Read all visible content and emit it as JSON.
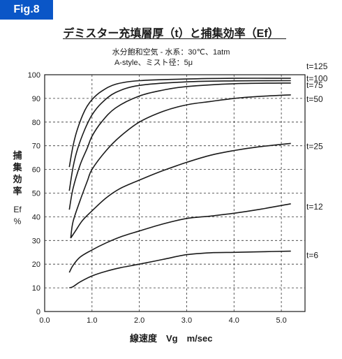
{
  "figure_label": "Fig.8",
  "title": "デミスター充填層厚（t）と捕集効率（Ef）",
  "subtitle_1": "水分飽和空気 - 水系：30℃、1atm",
  "subtitle_2": "A-style、ミスト径：5μ",
  "colors": {
    "badge": "#0a56c7",
    "curve": "#1a1a1a",
    "grid": "#333333"
  },
  "chart_data": {
    "type": "line",
    "title": "デミスター充填層厚（t）と捕集効率（Ef）",
    "xlabel": "線速度　Vg　m/sec",
    "ylabel": "捕集効率",
    "ylabel_unit": "Ef\n%",
    "xlim": [
      0.0,
      5.5
    ],
    "ylim": [
      0,
      100
    ],
    "x_ticks": [
      0.0,
      1.0,
      2.0,
      3.0,
      4.0,
      5.0
    ],
    "x_tick_labels": [
      "0.0",
      "1.0",
      "2.0",
      "3.0",
      "4.0",
      "5.0"
    ],
    "y_ticks": [
      0,
      10,
      20,
      30,
      40,
      50,
      60,
      70,
      80,
      90,
      100
    ],
    "y_tick_labels": [
      "0",
      "10",
      "20",
      "30",
      "40",
      "50",
      "60",
      "70",
      "80",
      "90",
      "100"
    ],
    "grid": "dashed at ticks",
    "series": [
      {
        "name": "t=125",
        "points": [
          [
            0.52,
            61
          ],
          [
            0.6,
            70
          ],
          [
            0.7,
            77.5
          ],
          [
            0.85,
            85
          ],
          [
            1.0,
            89.5
          ],
          [
            1.2,
            93
          ],
          [
            1.5,
            96
          ],
          [
            2.0,
            97.5
          ],
          [
            3.0,
            98.2
          ],
          [
            4.0,
            98.5
          ],
          [
            5.2,
            98.5
          ]
        ]
      },
      {
        "name": "t=100",
        "points": [
          [
            0.52,
            51
          ],
          [
            0.6,
            61
          ],
          [
            0.7,
            69
          ],
          [
            0.85,
            77
          ],
          [
            1.0,
            83
          ],
          [
            1.2,
            88
          ],
          [
            1.5,
            92.5
          ],
          [
            2.0,
            95.5
          ],
          [
            3.0,
            97
          ],
          [
            4.0,
            97.4
          ],
          [
            5.2,
            97.5
          ]
        ]
      },
      {
        "name": "t=75",
        "points": [
          [
            0.52,
            43
          ],
          [
            0.6,
            52
          ],
          [
            0.75,
            62
          ],
          [
            0.9,
            69
          ],
          [
            1.0,
            74
          ],
          [
            1.2,
            80
          ],
          [
            1.5,
            86
          ],
          [
            2.0,
            91
          ],
          [
            2.5,
            93.5
          ],
          [
            3.0,
            95
          ],
          [
            4.0,
            96.2
          ],
          [
            5.2,
            96.5
          ]
        ]
      },
      {
        "name": "t=50",
        "points": [
          [
            0.55,
            31
          ],
          [
            0.6,
            38
          ],
          [
            0.75,
            47
          ],
          [
            0.9,
            55
          ],
          [
            1.0,
            60
          ],
          [
            1.3,
            68
          ],
          [
            1.6,
            74
          ],
          [
            2.0,
            80
          ],
          [
            2.5,
            84.5
          ],
          [
            3.0,
            87.3
          ],
          [
            3.5,
            88.7
          ],
          [
            4.0,
            90
          ],
          [
            4.5,
            90.8
          ],
          [
            5.2,
            91.5
          ]
        ]
      },
      {
        "name": "t=25",
        "points": [
          [
            0.55,
            31
          ],
          [
            0.65,
            34
          ],
          [
            0.8,
            38.5
          ],
          [
            1.0,
            42.5
          ],
          [
            1.3,
            48
          ],
          [
            1.6,
            52
          ],
          [
            2.0,
            55.5
          ],
          [
            2.5,
            59.5
          ],
          [
            3.0,
            63
          ],
          [
            3.5,
            66
          ],
          [
            4.0,
            68
          ],
          [
            4.5,
            69.5
          ],
          [
            5.2,
            71
          ]
        ]
      },
      {
        "name": "t=12",
        "points": [
          [
            0.52,
            16.5
          ],
          [
            0.6,
            19.5
          ],
          [
            0.75,
            23
          ],
          [
            1.0,
            26
          ],
          [
            1.3,
            29
          ],
          [
            1.6,
            31.5
          ],
          [
            2.0,
            34
          ],
          [
            2.5,
            37
          ],
          [
            3.0,
            39.3
          ],
          [
            3.5,
            40.3
          ],
          [
            4.0,
            41.5
          ],
          [
            4.5,
            43
          ],
          [
            5.2,
            45.5
          ]
        ]
      },
      {
        "name": "t=6",
        "points": [
          [
            0.52,
            10
          ],
          [
            0.6,
            10.5
          ],
          [
            0.75,
            12.5
          ],
          [
            1.0,
            15
          ],
          [
            1.3,
            17
          ],
          [
            1.6,
            18.5
          ],
          [
            2.0,
            20
          ],
          [
            2.5,
            22
          ],
          [
            3.0,
            24
          ],
          [
            3.5,
            24.8
          ],
          [
            4.0,
            25
          ],
          [
            4.5,
            25.2
          ],
          [
            5.2,
            25.5
          ]
        ]
      }
    ]
  }
}
